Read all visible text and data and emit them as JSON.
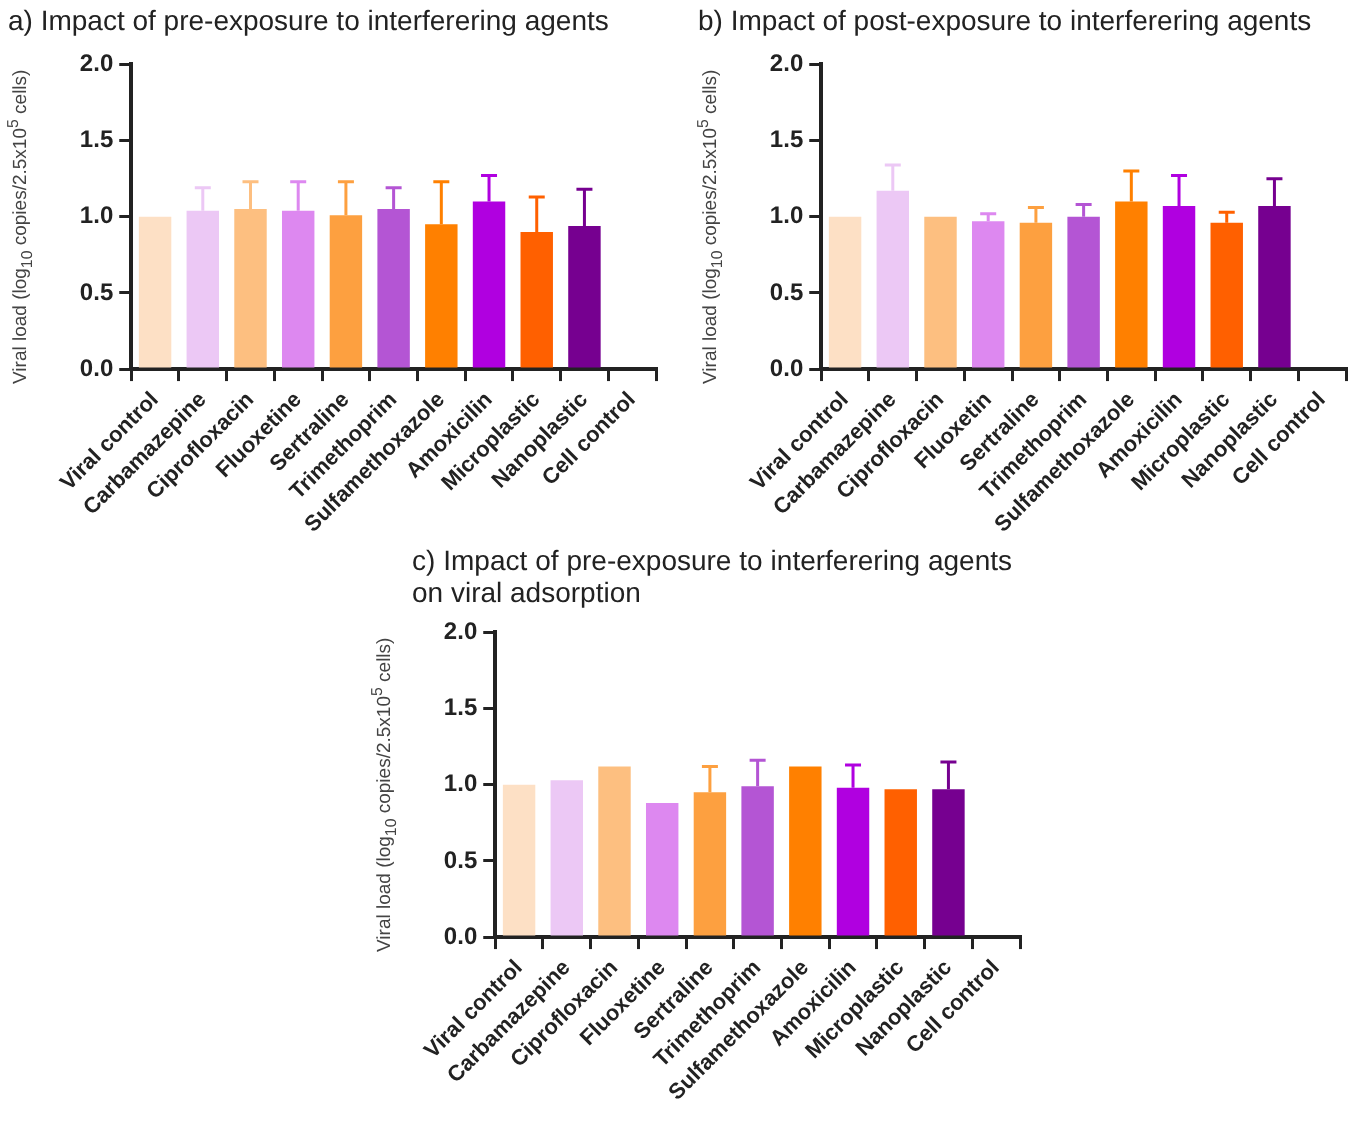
{
  "chart_data": [
    {
      "type": "bar",
      "title": "a) Impact of pre-exposure to interferering agents",
      "ylabel": "Viral load (log$_{10}$ copies/2.5x10$^{5}$ cells)",
      "categories": [
        "Viral control",
        "Carbamazepine",
        "Ciprofloxacin",
        "Fluoxetine",
        "Sertraline",
        "Trimethoprim",
        "Sulfamethoxazole",
        "Amoxicilin",
        "Microplastic",
        "Nanoplastic",
        "Cell control"
      ],
      "values": [
        1.0,
        1.04,
        1.05,
        1.04,
        1.01,
        1.05,
        0.95,
        1.1,
        0.9,
        0.94,
        null
      ],
      "errors": [
        null,
        [
          1.04,
          1.19
        ],
        [
          1.05,
          1.23
        ],
        [
          1.04,
          1.23
        ],
        [
          1.01,
          1.23
        ],
        [
          1.05,
          1.19
        ],
        [
          0.95,
          1.23
        ],
        [
          1.1,
          1.27
        ],
        [
          0.9,
          1.13
        ],
        [
          0.94,
          1.18
        ],
        null
      ],
      "colors": [
        "#fde0c5",
        "#ecc8f5",
        "#fdbf80",
        "#dd88f0",
        "#fda040",
        "#b455d4",
        "#ff8000",
        "#b000e0",
        "#ff6000",
        "#760090",
        "#cccccc"
      ],
      "ylim": [
        0,
        2
      ],
      "yticks": [
        {
          "value": 0,
          "label": "0.0"
        },
        {
          "value": 0.5,
          "label": "0.5"
        },
        {
          "value": 1,
          "label": "1.0"
        },
        {
          "value": 1.5,
          "label": "1.5"
        },
        {
          "value": 2,
          "label": "2.0"
        }
      ],
      "grid": false
    },
    {
      "type": "bar",
      "title": "b) Impact of post-exposure to interferering agents",
      "ylabel": "Viral load (log$_{10}$ copies/2.5x10$^{5}$ cells)",
      "categories": [
        "Viral control",
        "Carbamazepine",
        "Ciprofloxacin",
        "Fluoxetin",
        "Sertraline",
        "Trimethoprim",
        "Sulfamethoxazole",
        "Amoxicilin",
        "Microplastic",
        "Nanoplastic",
        "Cell control"
      ],
      "values": [
        1.0,
        1.17,
        1.0,
        0.97,
        0.96,
        1.0,
        1.1,
        1.07,
        0.96,
        1.07,
        null
      ],
      "errors": [
        null,
        [
          1.17,
          1.34
        ],
        null,
        [
          0.97,
          1.02
        ],
        [
          0.96,
          1.06
        ],
        [
          1.0,
          1.08
        ],
        [
          1.1,
          1.3
        ],
        [
          1.07,
          1.27
        ],
        [
          0.96,
          1.03
        ],
        [
          1.07,
          1.25
        ],
        null
      ],
      "colors": [
        "#fde0c5",
        "#ecc8f5",
        "#fdbf80",
        "#dd88f0",
        "#fda040",
        "#b455d4",
        "#ff8000",
        "#b000e0",
        "#ff6000",
        "#760090",
        "#cccccc"
      ],
      "ylim": [
        0,
        2
      ],
      "yticks": [
        {
          "value": 0,
          "label": "0.0"
        },
        {
          "value": 0.5,
          "label": "0.5"
        },
        {
          "value": 1,
          "label": "1.0"
        },
        {
          "value": 1.5,
          "label": "1.5"
        },
        {
          "value": 2,
          "label": "2.0"
        }
      ],
      "grid": false
    },
    {
      "type": "bar",
      "title": "c) Impact of pre-exposure to interferering agents on viral adsorption",
      "ylabel": "Viral load (log$_{10}$ copies/2.5x10$^{5}$ cells)",
      "categories": [
        "Viral control",
        "Carbamazepine",
        "Ciprofloxacin",
        "Fluoxetine",
        "Sertraline",
        "Trimethoprim",
        "Sulfamethoxazole",
        "Amoxicilin",
        "Microplastic",
        "Nanoplastic",
        "Cell control"
      ],
      "values": [
        1.0,
        1.03,
        1.12,
        0.88,
        0.95,
        0.99,
        1.12,
        0.98,
        0.97,
        0.97,
        null
      ],
      "errors": [
        null,
        null,
        null,
        null,
        [
          0.95,
          1.12
        ],
        [
          0.99,
          1.16
        ],
        null,
        [
          0.98,
          1.13
        ],
        null,
        [
          0.97,
          1.15
        ],
        null
      ],
      "colors": [
        "#fde0c5",
        "#ecc8f5",
        "#fdbf80",
        "#dd88f0",
        "#fda040",
        "#b455d4",
        "#ff8000",
        "#b000e0",
        "#ff6000",
        "#760090",
        "#cccccc"
      ],
      "ylim": [
        0,
        2
      ],
      "yticks": [
        {
          "value": 0,
          "label": "0.0"
        },
        {
          "value": 0.5,
          "label": "0.5"
        },
        {
          "value": 1,
          "label": "1.0"
        },
        {
          "value": 1.5,
          "label": "1.5"
        },
        {
          "value": 2,
          "label": "2.0"
        }
      ],
      "grid": false
    }
  ]
}
